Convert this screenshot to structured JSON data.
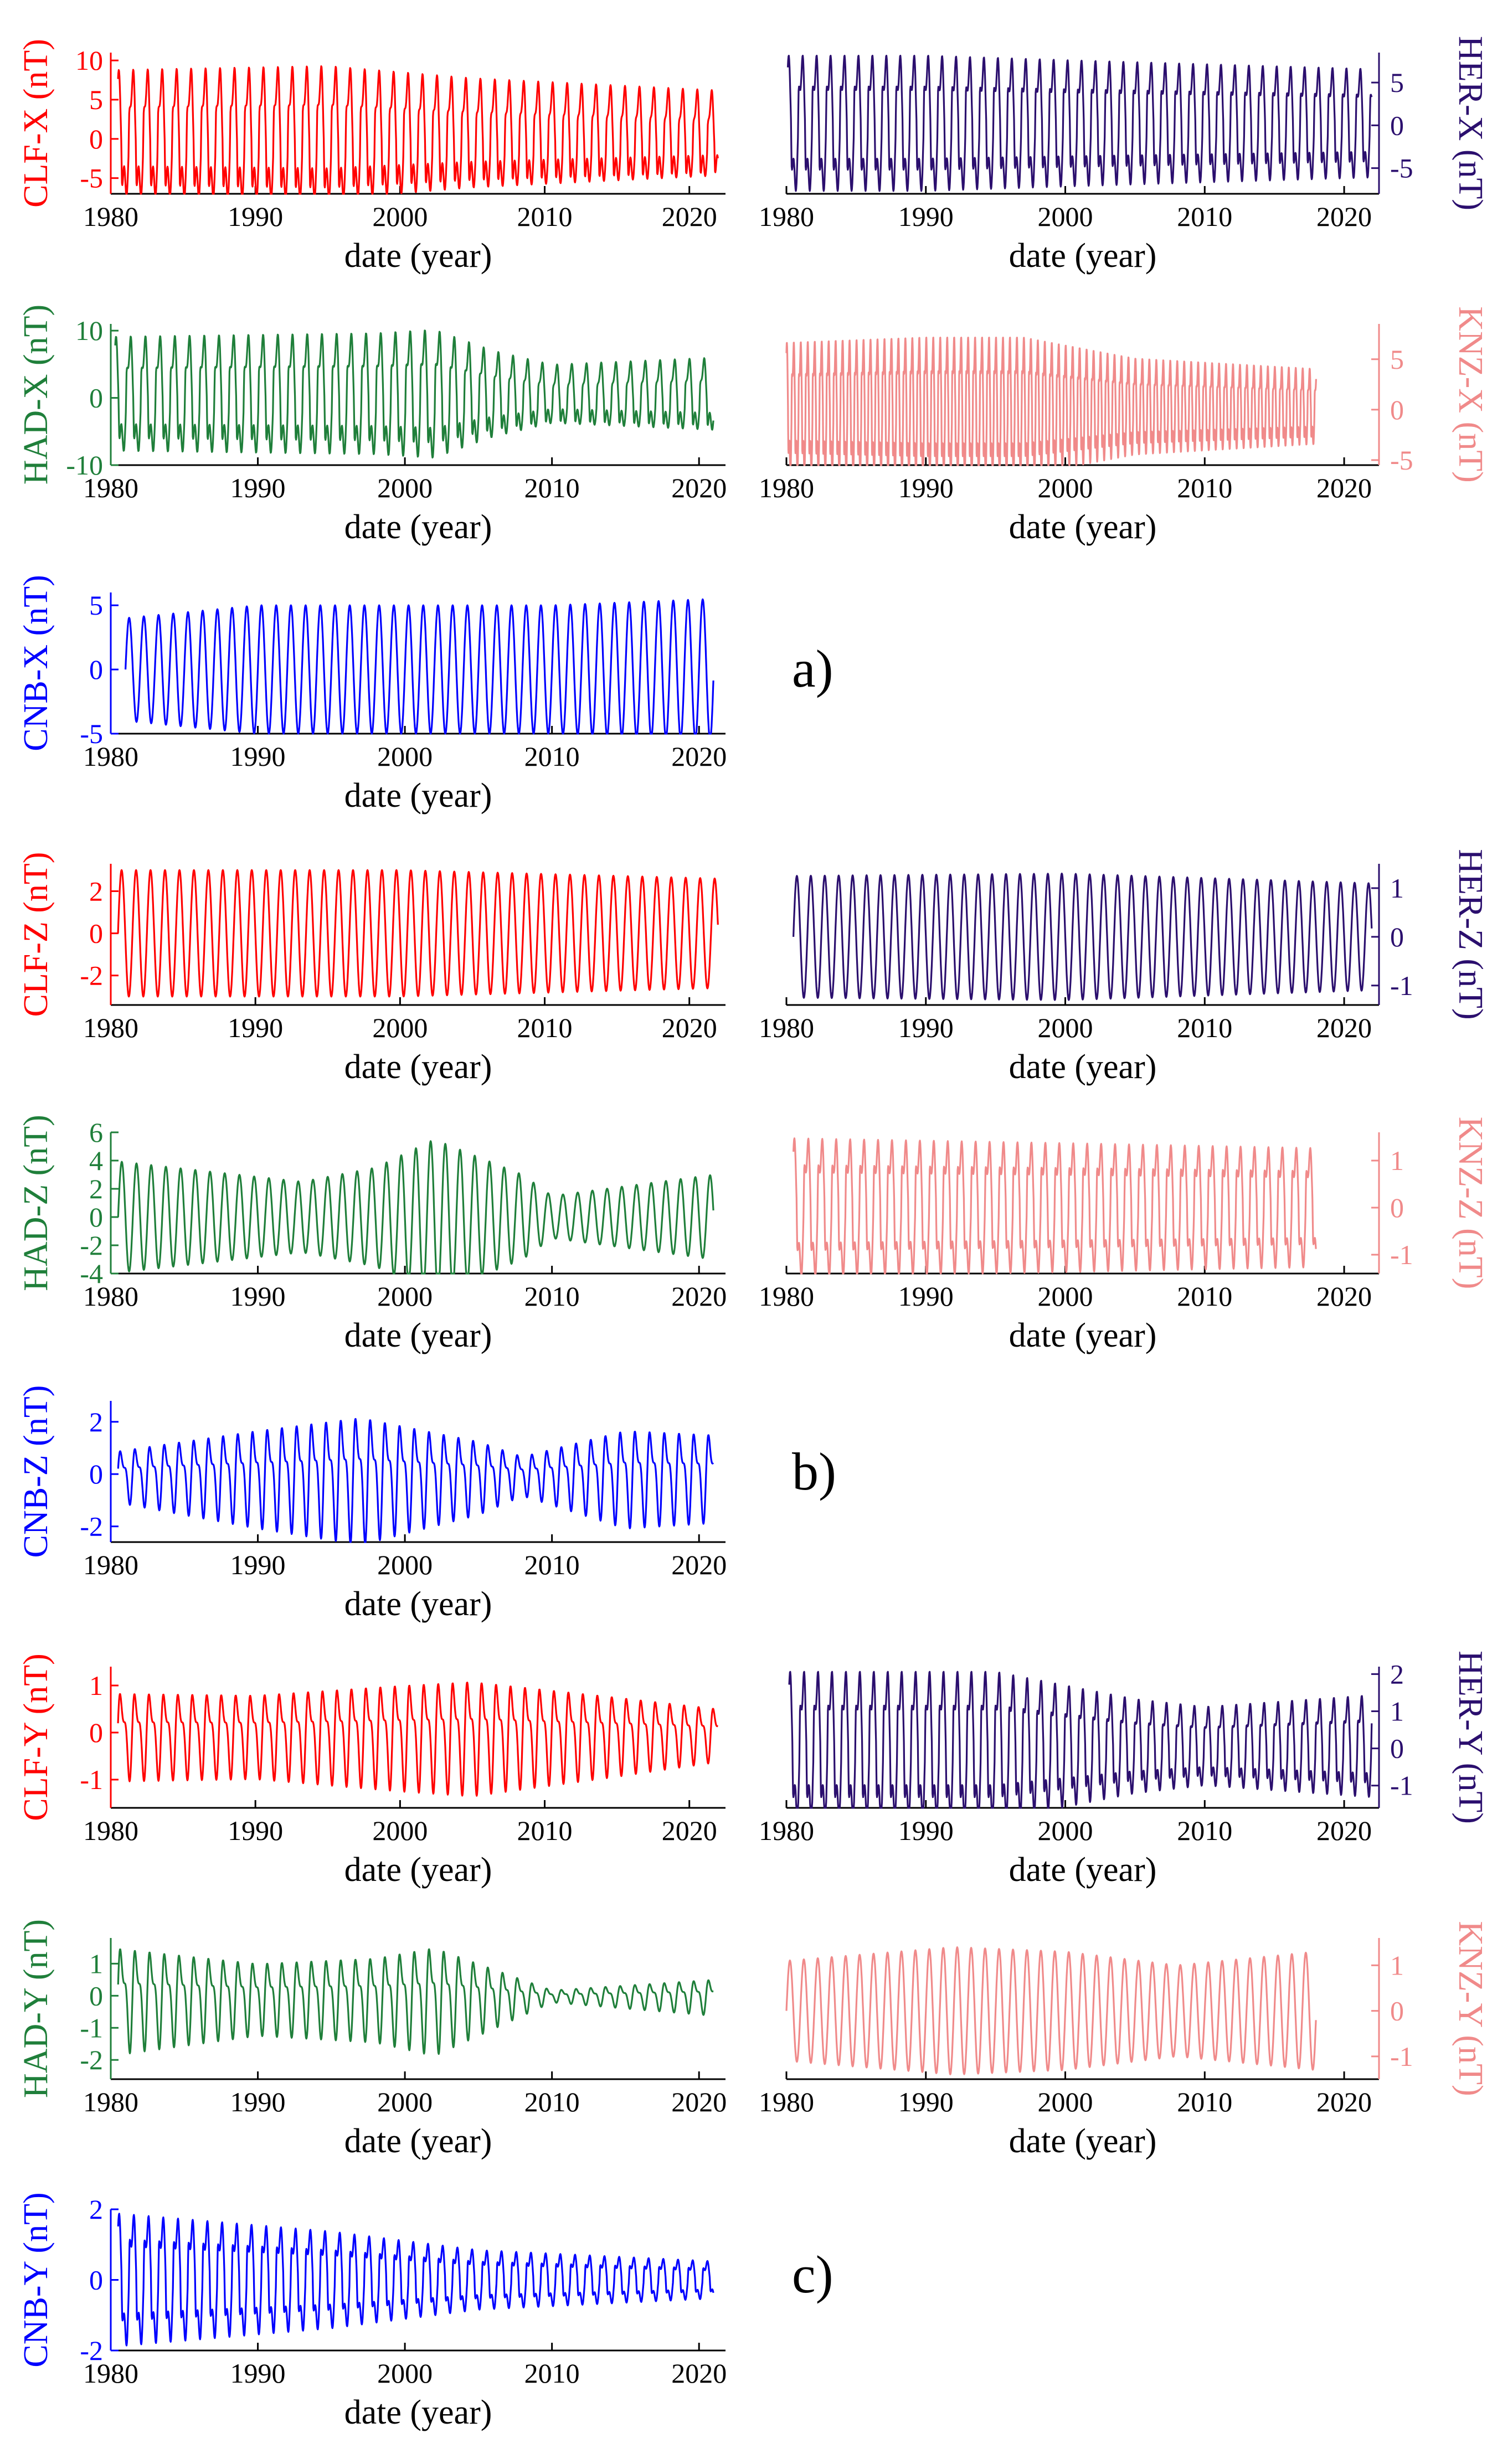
{
  "figure": {
    "group_labels": [
      "a)",
      "b)",
      "c)"
    ]
  },
  "colors": {
    "CLF": "#ff0000",
    "HER": "#2b0f6e",
    "HAD": "#1f7f3a",
    "KNZ": "#f08a8a",
    "CNB": "#0000ff",
    "axis": "#000000"
  },
  "chart_data": [
    {
      "type": "line",
      "station": "CLF",
      "component": "X",
      "group": "a",
      "ylabel": "CLF-X (nT)",
      "xlabel": "date (year)",
      "axis_side": "left",
      "xlim": [
        1980,
        2022.5
      ],
      "ylim": [
        -7,
        11
      ],
      "xticks": [
        1980,
        1990,
        2000,
        2010,
        2020
      ],
      "yticks": [
        -5,
        0,
        5,
        10
      ],
      "series": {
        "start": 1980.5,
        "end": 2022,
        "amp_points": [
          [
            1980,
            7.5
          ],
          [
            1995,
            8
          ],
          [
            2005,
            6.5
          ],
          [
            2022,
            5
          ]
        ],
        "offset": 2.5,
        "period": 1,
        "shape": "spiky"
      }
    },
    {
      "type": "line",
      "station": "HER",
      "component": "X",
      "group": "a",
      "ylabel": "HER-X (nT)",
      "xlabel": "date (year)",
      "axis_side": "right",
      "xlim": [
        1980,
        2022.5
      ],
      "ylim": [
        -8,
        8.5
      ],
      "xticks": [
        1980,
        1990,
        2000,
        2010,
        2020
      ],
      "yticks": [
        -5,
        0,
        5
      ],
      "series": {
        "start": 1980.1,
        "end": 2022,
        "amp_points": [
          [
            1980,
            7.5
          ],
          [
            1990,
            7.5
          ],
          [
            2000,
            7
          ],
          [
            2022,
            6
          ]
        ],
        "offset": 0.8,
        "period": 1,
        "shape": "spiky"
      }
    },
    {
      "type": "line",
      "station": "HAD",
      "component": "X",
      "group": "a",
      "ylabel": "HAD-X (nT)",
      "xlabel": "date (year)",
      "axis_side": "left",
      "xlim": [
        1980,
        2021.8
      ],
      "ylim": [
        -10,
        11
      ],
      "xticks": [
        1980,
        1990,
        2000,
        2010,
        2020
      ],
      "yticks": [
        -10,
        0,
        10
      ],
      "series": {
        "start": 1980.3,
        "end": 2021,
        "amp_points": [
          [
            1980,
            8
          ],
          [
            1998,
            8.5
          ],
          [
            2002,
            9
          ],
          [
            2006,
            6
          ],
          [
            2010,
            4
          ],
          [
            2021,
            5
          ]
        ],
        "offset": 2,
        "period": 1,
        "shape": "spiky"
      }
    },
    {
      "type": "line",
      "station": "KNZ",
      "component": "X",
      "group": "a",
      "ylabel": "KNZ-X (nT)",
      "xlabel": "date (year)",
      "axis_side": "right",
      "xlim": [
        1980,
        2022.5
      ],
      "ylim": [
        -5.5,
        8.5
      ],
      "xticks": [
        1980,
        1990,
        2000,
        2010,
        2020
      ],
      "yticks": [
        -5,
        0,
        5
      ],
      "series": {
        "start": 1980,
        "end": 2018,
        "amp_points": [
          [
            1980,
            6
          ],
          [
            1990,
            6.5
          ],
          [
            1997,
            6.5
          ],
          [
            2005,
            4.5
          ],
          [
            2018,
            3.5
          ]
        ],
        "offset": 1,
        "period": 0.5,
        "shape": "spiky"
      }
    },
    {
      "type": "line",
      "station": "CNB",
      "component": "X",
      "group": "a",
      "ylabel": "CNB-X (nT)",
      "xlabel": "date (year)",
      "axis_side": "left",
      "xlim": [
        1980,
        2021.8
      ],
      "ylim": [
        -5,
        6
      ],
      "xticks": [
        1980,
        1990,
        2000,
        2010,
        2020
      ],
      "yticks": [
        -5,
        0,
        5
      ],
      "series": {
        "start": 1981,
        "end": 2021,
        "amp_points": [
          [
            1981,
            4
          ],
          [
            1990,
            5
          ],
          [
            2000,
            5
          ],
          [
            2010,
            5
          ],
          [
            2021,
            5.5
          ]
        ],
        "offset": 0,
        "period": 1,
        "shape": "sine"
      }
    },
    {
      "type": "line",
      "station": "CLF",
      "component": "Z",
      "group": "b",
      "ylabel": "CLF-Z (nT)",
      "xlabel": "date (year)",
      "axis_side": "left",
      "xlim": [
        1980,
        2022.5
      ],
      "ylim": [
        -3.4,
        3.3
      ],
      "xticks": [
        1980,
        1990,
        2000,
        2010,
        2020
      ],
      "yticks": [
        -2,
        0,
        2
      ],
      "series": {
        "start": 1980.5,
        "end": 2022,
        "amp_points": [
          [
            1980,
            3
          ],
          [
            2000,
            3
          ],
          [
            2022,
            2.6
          ]
        ],
        "offset": 0,
        "period": 1,
        "shape": "sine"
      }
    },
    {
      "type": "line",
      "station": "HER",
      "component": "Z",
      "group": "b",
      "ylabel": "HER-Z (nT)",
      "xlabel": "date (year)",
      "axis_side": "right",
      "xlim": [
        1980,
        2022.5
      ],
      "ylim": [
        -1.4,
        1.5
      ],
      "xticks": [
        1980,
        1990,
        2000,
        2010,
        2020
      ],
      "yticks": [
        -1,
        0,
        1
      ],
      "series": {
        "start": 1980.5,
        "end": 2022,
        "amp_points": [
          [
            1980,
            1.25
          ],
          [
            2000,
            1.3
          ],
          [
            2022,
            1.1
          ]
        ],
        "offset": 0,
        "period": 1,
        "shape": "sine"
      }
    },
    {
      "type": "line",
      "station": "HAD",
      "component": "Z",
      "group": "b",
      "ylabel": "HAD-Z (nT)",
      "xlabel": "date (year)",
      "axis_side": "left",
      "xlim": [
        1980,
        2021.8
      ],
      "ylim": [
        -4,
        6
      ],
      "xticks": [
        1980,
        1990,
        2000,
        2010,
        2020
      ],
      "yticks": [
        -4,
        -2,
        0,
        2,
        4,
        6
      ],
      "series": {
        "start": 1980.5,
        "end": 2021,
        "amp_points": [
          [
            1980,
            4
          ],
          [
            1993,
            2.5
          ],
          [
            1998,
            3.5
          ],
          [
            2002,
            5.5
          ],
          [
            2008,
            3
          ],
          [
            2010,
            1.5
          ],
          [
            2021,
            3
          ]
        ],
        "offset": 0,
        "period": 1,
        "shape": "sine"
      }
    },
    {
      "type": "line",
      "station": "KNZ",
      "component": "Z",
      "group": "b",
      "ylabel": "KNZ-Z (nT)",
      "xlabel": "date (year)",
      "axis_side": "right",
      "xlim": [
        1980,
        2022.5
      ],
      "ylim": [
        -1.4,
        1.6
      ],
      "xticks": [
        1980,
        1990,
        2000,
        2010,
        2020
      ],
      "yticks": [
        -1,
        0,
        1
      ],
      "series": {
        "start": 1980.5,
        "end": 2018,
        "amp_points": [
          [
            1980,
            1.4
          ],
          [
            2000,
            1.3
          ],
          [
            2018,
            1.2
          ]
        ],
        "offset": 0,
        "period": 1,
        "shape": "spiky"
      }
    },
    {
      "type": "line",
      "station": "CNB",
      "component": "Z",
      "group": "b",
      "ylabel": "CNB-Z (nT)",
      "xlabel": "date (year)",
      "axis_side": "left",
      "xlim": [
        1980,
        2021.8
      ],
      "ylim": [
        -2.6,
        2.8
      ],
      "xticks": [
        1980,
        1990,
        2000,
        2010,
        2020
      ],
      "yticks": [
        -2,
        0,
        2
      ],
      "series": {
        "start": 1980.5,
        "end": 2021,
        "amp_points": [
          [
            1980,
            1
          ],
          [
            1990,
            2
          ],
          [
            1997,
            2.6
          ],
          [
            2005,
            1.5
          ],
          [
            2008,
            0.8
          ],
          [
            2015,
            2
          ],
          [
            2021,
            1.8
          ]
        ],
        "offset": 0,
        "period": 1,
        "shape": "double"
      }
    },
    {
      "type": "line",
      "station": "CLF",
      "component": "Y",
      "group": "c",
      "ylabel": "CLF-Y (nT)",
      "xlabel": "date (year)",
      "axis_side": "left",
      "xlim": [
        1980,
        2022.5
      ],
      "ylim": [
        -1.6,
        1.4
      ],
      "xticks": [
        1980,
        1990,
        2000,
        2010,
        2020
      ],
      "yticks": [
        -1,
        0,
        1
      ],
      "series": {
        "start": 1980.5,
        "end": 2022,
        "amp_points": [
          [
            1980,
            1
          ],
          [
            1990,
            0.95
          ],
          [
            2000,
            1.2
          ],
          [
            2005,
            1.3
          ],
          [
            2015,
            0.9
          ],
          [
            2022,
            0.6
          ]
        ],
        "offset": 0,
        "period": 1,
        "shape": "double"
      }
    },
    {
      "type": "line",
      "station": "HER",
      "component": "Y",
      "group": "c",
      "ylabel": "HER-Y (nT)",
      "xlabel": "date (year)",
      "axis_side": "right",
      "xlim": [
        1980,
        2022.5
      ],
      "ylim": [
        -1.6,
        2.2
      ],
      "xticks": [
        1980,
        1990,
        2000,
        2010,
        2020
      ],
      "yticks": [
        -1,
        0,
        1,
        2
      ],
      "series": {
        "start": 1980.2,
        "end": 2022,
        "amp_points": [
          [
            1980,
            1.9
          ],
          [
            1995,
            1.9
          ],
          [
            2005,
            1.2
          ],
          [
            2010,
            1
          ],
          [
            2022,
            1.3
          ]
        ],
        "offset": 0.2,
        "period": 1,
        "shape": "spiky"
      }
    },
    {
      "type": "line",
      "station": "HAD",
      "component": "Y",
      "group": "c",
      "ylabel": "HAD-Y (nT)",
      "xlabel": "date (year)",
      "axis_side": "left",
      "xlim": [
        1980,
        2021.8
      ],
      "ylim": [
        -2.6,
        1.8
      ],
      "xticks": [
        1980,
        1990,
        2000,
        2010,
        2020
      ],
      "yticks": [
        -2,
        -1,
        0,
        1
      ],
      "series": {
        "start": 1980.5,
        "end": 2021,
        "amp_points": [
          [
            1980,
            1.8
          ],
          [
            1990,
            1.2
          ],
          [
            1998,
            1.4
          ],
          [
            2002,
            1.8
          ],
          [
            2007,
            0.8
          ],
          [
            2010,
            0.2
          ],
          [
            2021,
            0.6
          ]
        ],
        "offset": 0,
        "period": 1,
        "shape": "double"
      }
    },
    {
      "type": "line",
      "station": "KNZ",
      "component": "Y",
      "group": "c",
      "ylabel": "KNZ-Y (nT)",
      "xlabel": "date (year)",
      "axis_side": "right",
      "xlim": [
        1980,
        2022.5
      ],
      "ylim": [
        -1.5,
        1.6
      ],
      "xticks": [
        1980,
        1990,
        2000,
        2010,
        2020
      ],
      "yticks": [
        -1,
        0,
        1
      ],
      "series": {
        "start": 1980,
        "end": 2018,
        "amp_points": [
          [
            1980,
            1.1
          ],
          [
            1992,
            1.4
          ],
          [
            2000,
            1.3
          ],
          [
            2008,
            1
          ],
          [
            2018,
            1.3
          ]
        ],
        "offset": 0,
        "period": 1,
        "shape": "sine"
      }
    },
    {
      "type": "line",
      "station": "CNB",
      "component": "Y",
      "group": "c",
      "ylabel": "CNB-Y (nT)",
      "xlabel": "date (year)",
      "axis_side": "left",
      "xlim": [
        1980,
        2021.8
      ],
      "ylim": [
        -2,
        2
      ],
      "xticks": [
        1980,
        1990,
        2000,
        2010,
        2020
      ],
      "yticks": [
        -2,
        0,
        2
      ],
      "series": {
        "start": 1980.5,
        "end": 2021,
        "amp_points": [
          [
            1980,
            1.8
          ],
          [
            1995,
            1.3
          ],
          [
            2005,
            0.8
          ],
          [
            2021,
            0.5
          ]
        ],
        "offset": 0,
        "period": 1,
        "shape": "spiky"
      }
    }
  ]
}
